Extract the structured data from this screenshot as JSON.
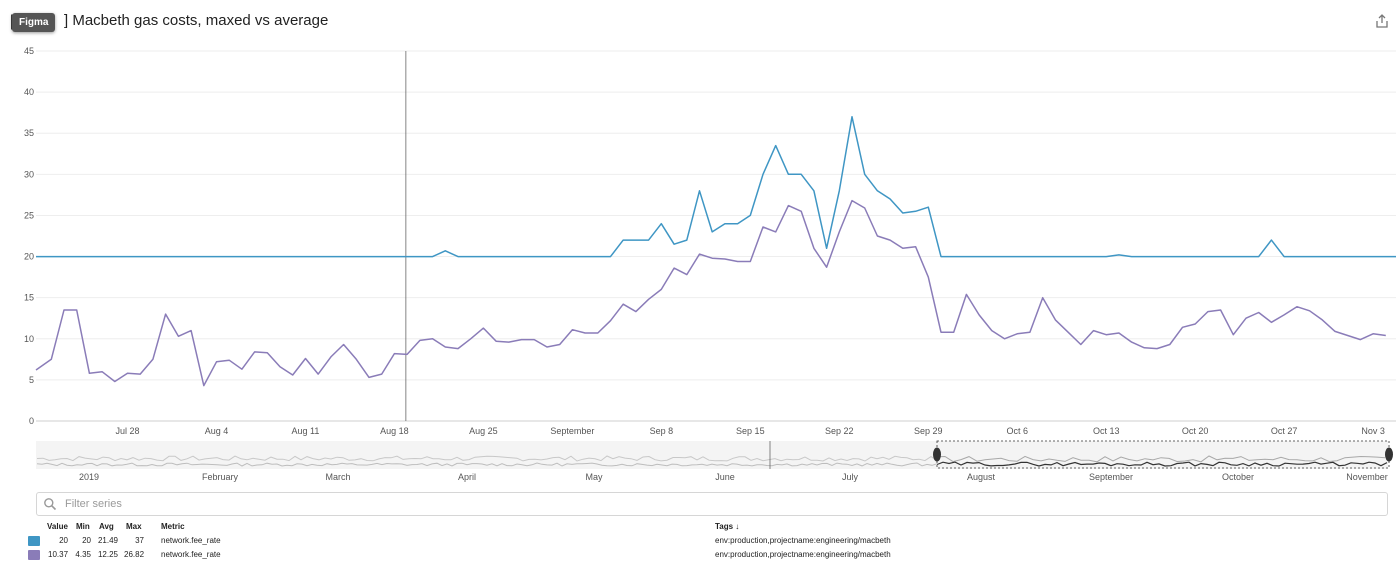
{
  "header": {
    "bracket_open": "[",
    "badge_label": "Figma",
    "bracket_close": "]",
    "title": "Macbeth gas costs, maxed vs average",
    "share_icon": "share-icon"
  },
  "chart_data": [
    {
      "type": "line",
      "title": "",
      "xlabel": "",
      "ylabel": "",
      "ylim": [
        0,
        45
      ],
      "yticks": [
        0,
        5,
        10,
        15,
        20,
        25,
        30,
        35,
        40,
        45
      ],
      "xticks": [
        {
          "label": "Jul 28",
          "day": 6
        },
        {
          "label": "Aug 4",
          "day": 13
        },
        {
          "label": "Aug 11",
          "day": 20
        },
        {
          "label": "Aug 18",
          "day": 27
        },
        {
          "label": "Aug 25",
          "day": 34
        },
        {
          "label": "September",
          "day": 41
        },
        {
          "label": "Sep 8",
          "day": 48
        },
        {
          "label": "Sep 15",
          "day": 55
        },
        {
          "label": "Sep 22",
          "day": 62
        },
        {
          "label": "Sep 29",
          "day": 69
        },
        {
          "label": "Oct 6",
          "day": 76
        },
        {
          "label": "Oct 13",
          "day": 83
        },
        {
          "label": "Oct 20",
          "day": 90
        },
        {
          "label": "Oct 27",
          "day": 97
        },
        {
          "label": "Nov 3",
          "day": 104
        }
      ],
      "xrange": [
        -1.2,
        105.8
      ],
      "cursor_day": 27.9,
      "grid": true,
      "series": [
        {
          "color": "#3f96c4",
          "points": [
            [
              -1.2,
              20
            ],
            [
              29,
              20
            ],
            [
              30,
              20
            ],
            [
              31,
              20.7
            ],
            [
              32,
              20
            ],
            [
              41,
              20
            ],
            [
              42,
              20
            ],
            [
              44,
              20
            ],
            [
              45,
              22
            ],
            [
              47,
              22
            ],
            [
              48,
              24
            ],
            [
              49,
              21.5
            ],
            [
              50,
              22
            ],
            [
              51,
              28
            ],
            [
              52,
              23
            ],
            [
              53,
              24
            ],
            [
              54,
              24
            ],
            [
              55,
              25
            ],
            [
              56,
              30
            ],
            [
              57,
              33.5
            ],
            [
              58,
              30
            ],
            [
              59,
              30
            ],
            [
              60,
              28
            ],
            [
              61,
              21
            ],
            [
              62,
              28
            ],
            [
              63,
              37
            ],
            [
              64,
              30
            ],
            [
              65,
              28
            ],
            [
              66,
              27
            ],
            [
              67,
              25.3
            ],
            [
              68,
              25.5
            ],
            [
              69,
              26
            ],
            [
              70,
              20
            ],
            [
              83,
              20
            ],
            [
              84,
              20.2
            ],
            [
              85,
              20
            ],
            [
              95,
              20
            ],
            [
              96,
              22
            ],
            [
              97,
              20
            ],
            [
              105.8,
              20
            ]
          ]
        },
        {
          "color": "#8a7cb8",
          "points": [
            [
              -1.2,
              6.2
            ],
            [
              0,
              7.5
            ],
            [
              1,
              13.5
            ],
            [
              2,
              13.5
            ],
            [
              3,
              5.8
            ],
            [
              4,
              6
            ],
            [
              5,
              4.8
            ],
            [
              6,
              5.8
            ],
            [
              7,
              5.7
            ],
            [
              8,
              7.5
            ],
            [
              9,
              13
            ],
            [
              10,
              10.3
            ],
            [
              11,
              11
            ],
            [
              12,
              4.3
            ],
            [
              13,
              7.2
            ],
            [
              14,
              7.4
            ],
            [
              15,
              6.3
            ],
            [
              16,
              8.4
            ],
            [
              17,
              8.3
            ],
            [
              18,
              6.6
            ],
            [
              19,
              5.6
            ],
            [
              20,
              7.6
            ],
            [
              21,
              5.7
            ],
            [
              22,
              7.8
            ],
            [
              23,
              9.3
            ],
            [
              24,
              7.5
            ],
            [
              25,
              5.3
            ],
            [
              26,
              5.7
            ],
            [
              27,
              8.2
            ],
            [
              28,
              8.1
            ],
            [
              29,
              9.8
            ],
            [
              30,
              10
            ],
            [
              31,
              9
            ],
            [
              32,
              8.8
            ],
            [
              33,
              10
            ],
            [
              34,
              11.3
            ],
            [
              35,
              9.7
            ],
            [
              36,
              9.6
            ],
            [
              37,
              9.9
            ],
            [
              38,
              9.9
            ],
            [
              39,
              9
            ],
            [
              40,
              9.3
            ],
            [
              41,
              11.1
            ],
            [
              42,
              10.7
            ],
            [
              43,
              10.7
            ],
            [
              44,
              12.2
            ],
            [
              45,
              14.2
            ],
            [
              46,
              13.3
            ],
            [
              47,
              14.8
            ],
            [
              48,
              16
            ],
            [
              49,
              18.6
            ],
            [
              50,
              17.8
            ],
            [
              51,
              20.3
            ],
            [
              52,
              19.8
            ],
            [
              53,
              19.7
            ],
            [
              54,
              19.4
            ],
            [
              55,
              19.4
            ],
            [
              56,
              23.6
            ],
            [
              57,
              23
            ],
            [
              58,
              26.2
            ],
            [
              59,
              25.5
            ],
            [
              60,
              21
            ],
            [
              61,
              18.7
            ],
            [
              62,
              23
            ],
            [
              63,
              26.8
            ],
            [
              64,
              25.9
            ],
            [
              65,
              22.5
            ],
            [
              66,
              22
            ],
            [
              67,
              21
            ],
            [
              68,
              21.2
            ],
            [
              69,
              17.5
            ],
            [
              70,
              10.8
            ],
            [
              71,
              10.8
            ],
            [
              72,
              15.4
            ],
            [
              73,
              12.9
            ],
            [
              74,
              11
            ],
            [
              75,
              10
            ],
            [
              76,
              10.6
            ],
            [
              77,
              10.8
            ],
            [
              78,
              15
            ],
            [
              79,
              12.3
            ],
            [
              80,
              10.8
            ],
            [
              81,
              9.3
            ],
            [
              82,
              11
            ],
            [
              83,
              10.5
            ],
            [
              84,
              10.7
            ],
            [
              85,
              9.6
            ],
            [
              86,
              8.9
            ],
            [
              87,
              8.8
            ],
            [
              88,
              9.3
            ],
            [
              89,
              11.4
            ],
            [
              90,
              11.8
            ],
            [
              91,
              13.3
            ],
            [
              92,
              13.5
            ],
            [
              93,
              10.5
            ],
            [
              94,
              12.5
            ],
            [
              95,
              13.2
            ],
            [
              96,
              12
            ],
            [
              97,
              12.9
            ],
            [
              98,
              13.9
            ],
            [
              99,
              13.4
            ],
            [
              100,
              12.3
            ],
            [
              101,
              10.9
            ],
            [
              102,
              10.4
            ],
            [
              103,
              9.9
            ],
            [
              104,
              10.6
            ],
            [
              105,
              10.4
            ]
          ]
        }
      ]
    }
  ],
  "overview": {
    "labels": [
      "2019",
      "February",
      "March",
      "April",
      "May",
      "June",
      "July",
      "August",
      "September",
      "October",
      "November"
    ]
  },
  "filter": {
    "placeholder": "Filter series",
    "search_icon": "search-icon"
  },
  "legend": {
    "headers": {
      "value": "Value",
      "min": "Min",
      "avg": "Avg",
      "max": "Max",
      "metric": "Metric",
      "tags": "Tags ↓"
    },
    "rows": [
      {
        "color": "#3f96c4",
        "value": "20",
        "min": "20",
        "avg": "21.49",
        "max": "37",
        "metric": "network.fee_rate",
        "tags": "env:production,projectname:engineering/macbeth"
      },
      {
        "color": "#8a7cb8",
        "value": "10.37",
        "min": "4.35",
        "avg": "12.25",
        "max": "26.82",
        "metric": "network.fee_rate",
        "tags": "env:production,projectname:engineering/macbeth"
      }
    ]
  }
}
